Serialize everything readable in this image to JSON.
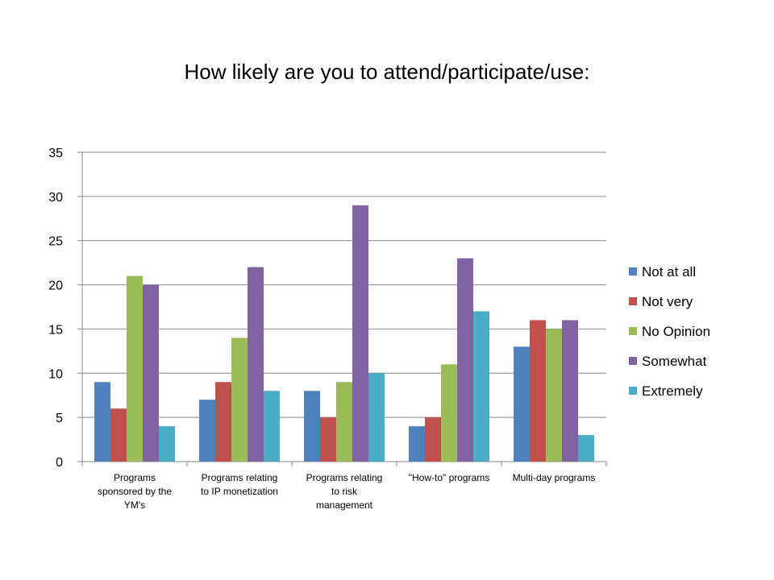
{
  "chart_data": {
    "type": "bar",
    "title": "How likely are you to attend/participate/use:",
    "xlabel": "",
    "ylabel": "",
    "ylim": [
      0,
      35
    ],
    "yticks": [
      0,
      5,
      10,
      15,
      20,
      25,
      30,
      35
    ],
    "grid": true,
    "legend_position": "right",
    "categories": [
      "Programs sponsored by the YM's",
      "Programs relating to IP monetization",
      "Programs relating to risk management",
      "\"How-to\" programs",
      "Multi-day programs"
    ],
    "category_lines": [
      [
        "Programs",
        "sponsored by the",
        "YM's"
      ],
      [
        "Programs relating",
        "to IP monetization"
      ],
      [
        "Programs relating",
        "to risk",
        "management"
      ],
      [
        "\"How-to\" programs"
      ],
      [
        "Multi-day programs"
      ]
    ],
    "series": [
      {
        "name": "Not at all",
        "color": "#4F81BD",
        "values": [
          9,
          7,
          8,
          4,
          13
        ]
      },
      {
        "name": "Not very",
        "color": "#C0504D",
        "values": [
          6,
          9,
          5,
          5,
          16
        ]
      },
      {
        "name": "No Opinion",
        "color": "#9BBB59",
        "values": [
          21,
          14,
          9,
          11,
          15
        ]
      },
      {
        "name": "Somewhat",
        "color": "#8064A2",
        "values": [
          20,
          22,
          29,
          23,
          16
        ]
      },
      {
        "name": "Extremely",
        "color": "#4BACC6",
        "values": [
          4,
          8,
          10,
          17,
          3
        ]
      }
    ]
  }
}
